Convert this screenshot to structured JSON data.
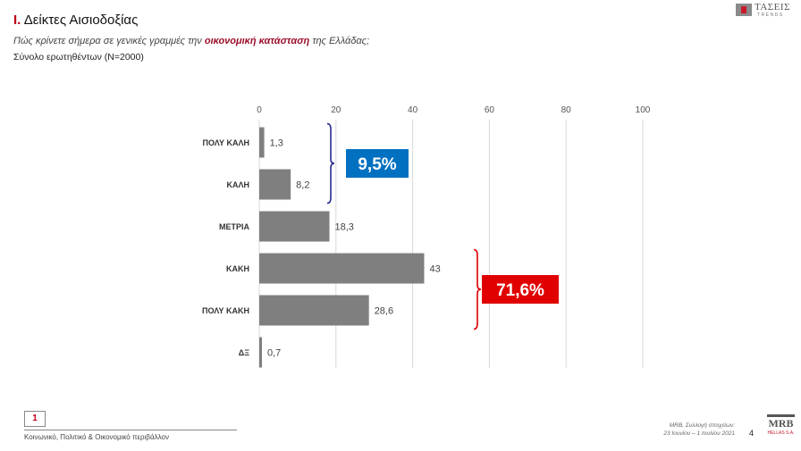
{
  "header": {
    "roman": "Ι.",
    "title": "Δείκτες Αισιοδοξίας",
    "question_pre": "Πώς κρίνετε σήμερα σε γενικές γραμμές την ",
    "question_highlight": "οικονομική κατάσταση",
    "question_post": " της Ελλάδας;",
    "base": "Σύνολο ερωτηθέντων (Ν=2000)"
  },
  "logo": {
    "name": "ΤΑΣΕΙΣ",
    "sub": "TRENDS"
  },
  "chart_data": {
    "type": "bar",
    "orientation": "horizontal",
    "categories": [
      "ΠΟΛΥ ΚΑΛΗ",
      "ΚΑΛΗ",
      "ΜΕΤΡΙΑ",
      "ΚΑΚΗ",
      "ΠΟΛΥ ΚΑΚΗ",
      "ΔΞ"
    ],
    "values": [
      1.3,
      8.2,
      18.3,
      43,
      28.6,
      0.7
    ],
    "value_labels": [
      "1,3",
      "8,2",
      "18,3",
      "43",
      "28,6",
      "0,7"
    ],
    "xlim": [
      0,
      100
    ],
    "xticks": [
      0,
      20,
      40,
      60,
      80,
      100
    ],
    "grid": true,
    "bar_color": "#7f7f7f",
    "annotations": [
      {
        "label": "9,5%",
        "color": "#0070c0",
        "bracket_color": "#2b2b8f",
        "groups": [
          "ΠΟΛΥ ΚΑΛΗ",
          "ΚΑΛΗ"
        ]
      },
      {
        "label": "71,6%",
        "color": "#e00000",
        "bracket_color": "#e00000",
        "groups": [
          "ΚΑΚΗ",
          "ΠΟΛΥ ΚΑΚΗ"
        ]
      }
    ]
  },
  "footer": {
    "section_number": "1",
    "section_label": "Κοινωνικό, Πολιτικό & Οικονομικό περιβάλλον",
    "source_line1": "MRB, Συλλογή στοιχείων:",
    "source_line2": "23 Ιουνίου – 1 Ιουλίου 2021",
    "page_number": "4",
    "mrb_logo": "MRB",
    "mrb_sub": "HELLAS S.A."
  }
}
